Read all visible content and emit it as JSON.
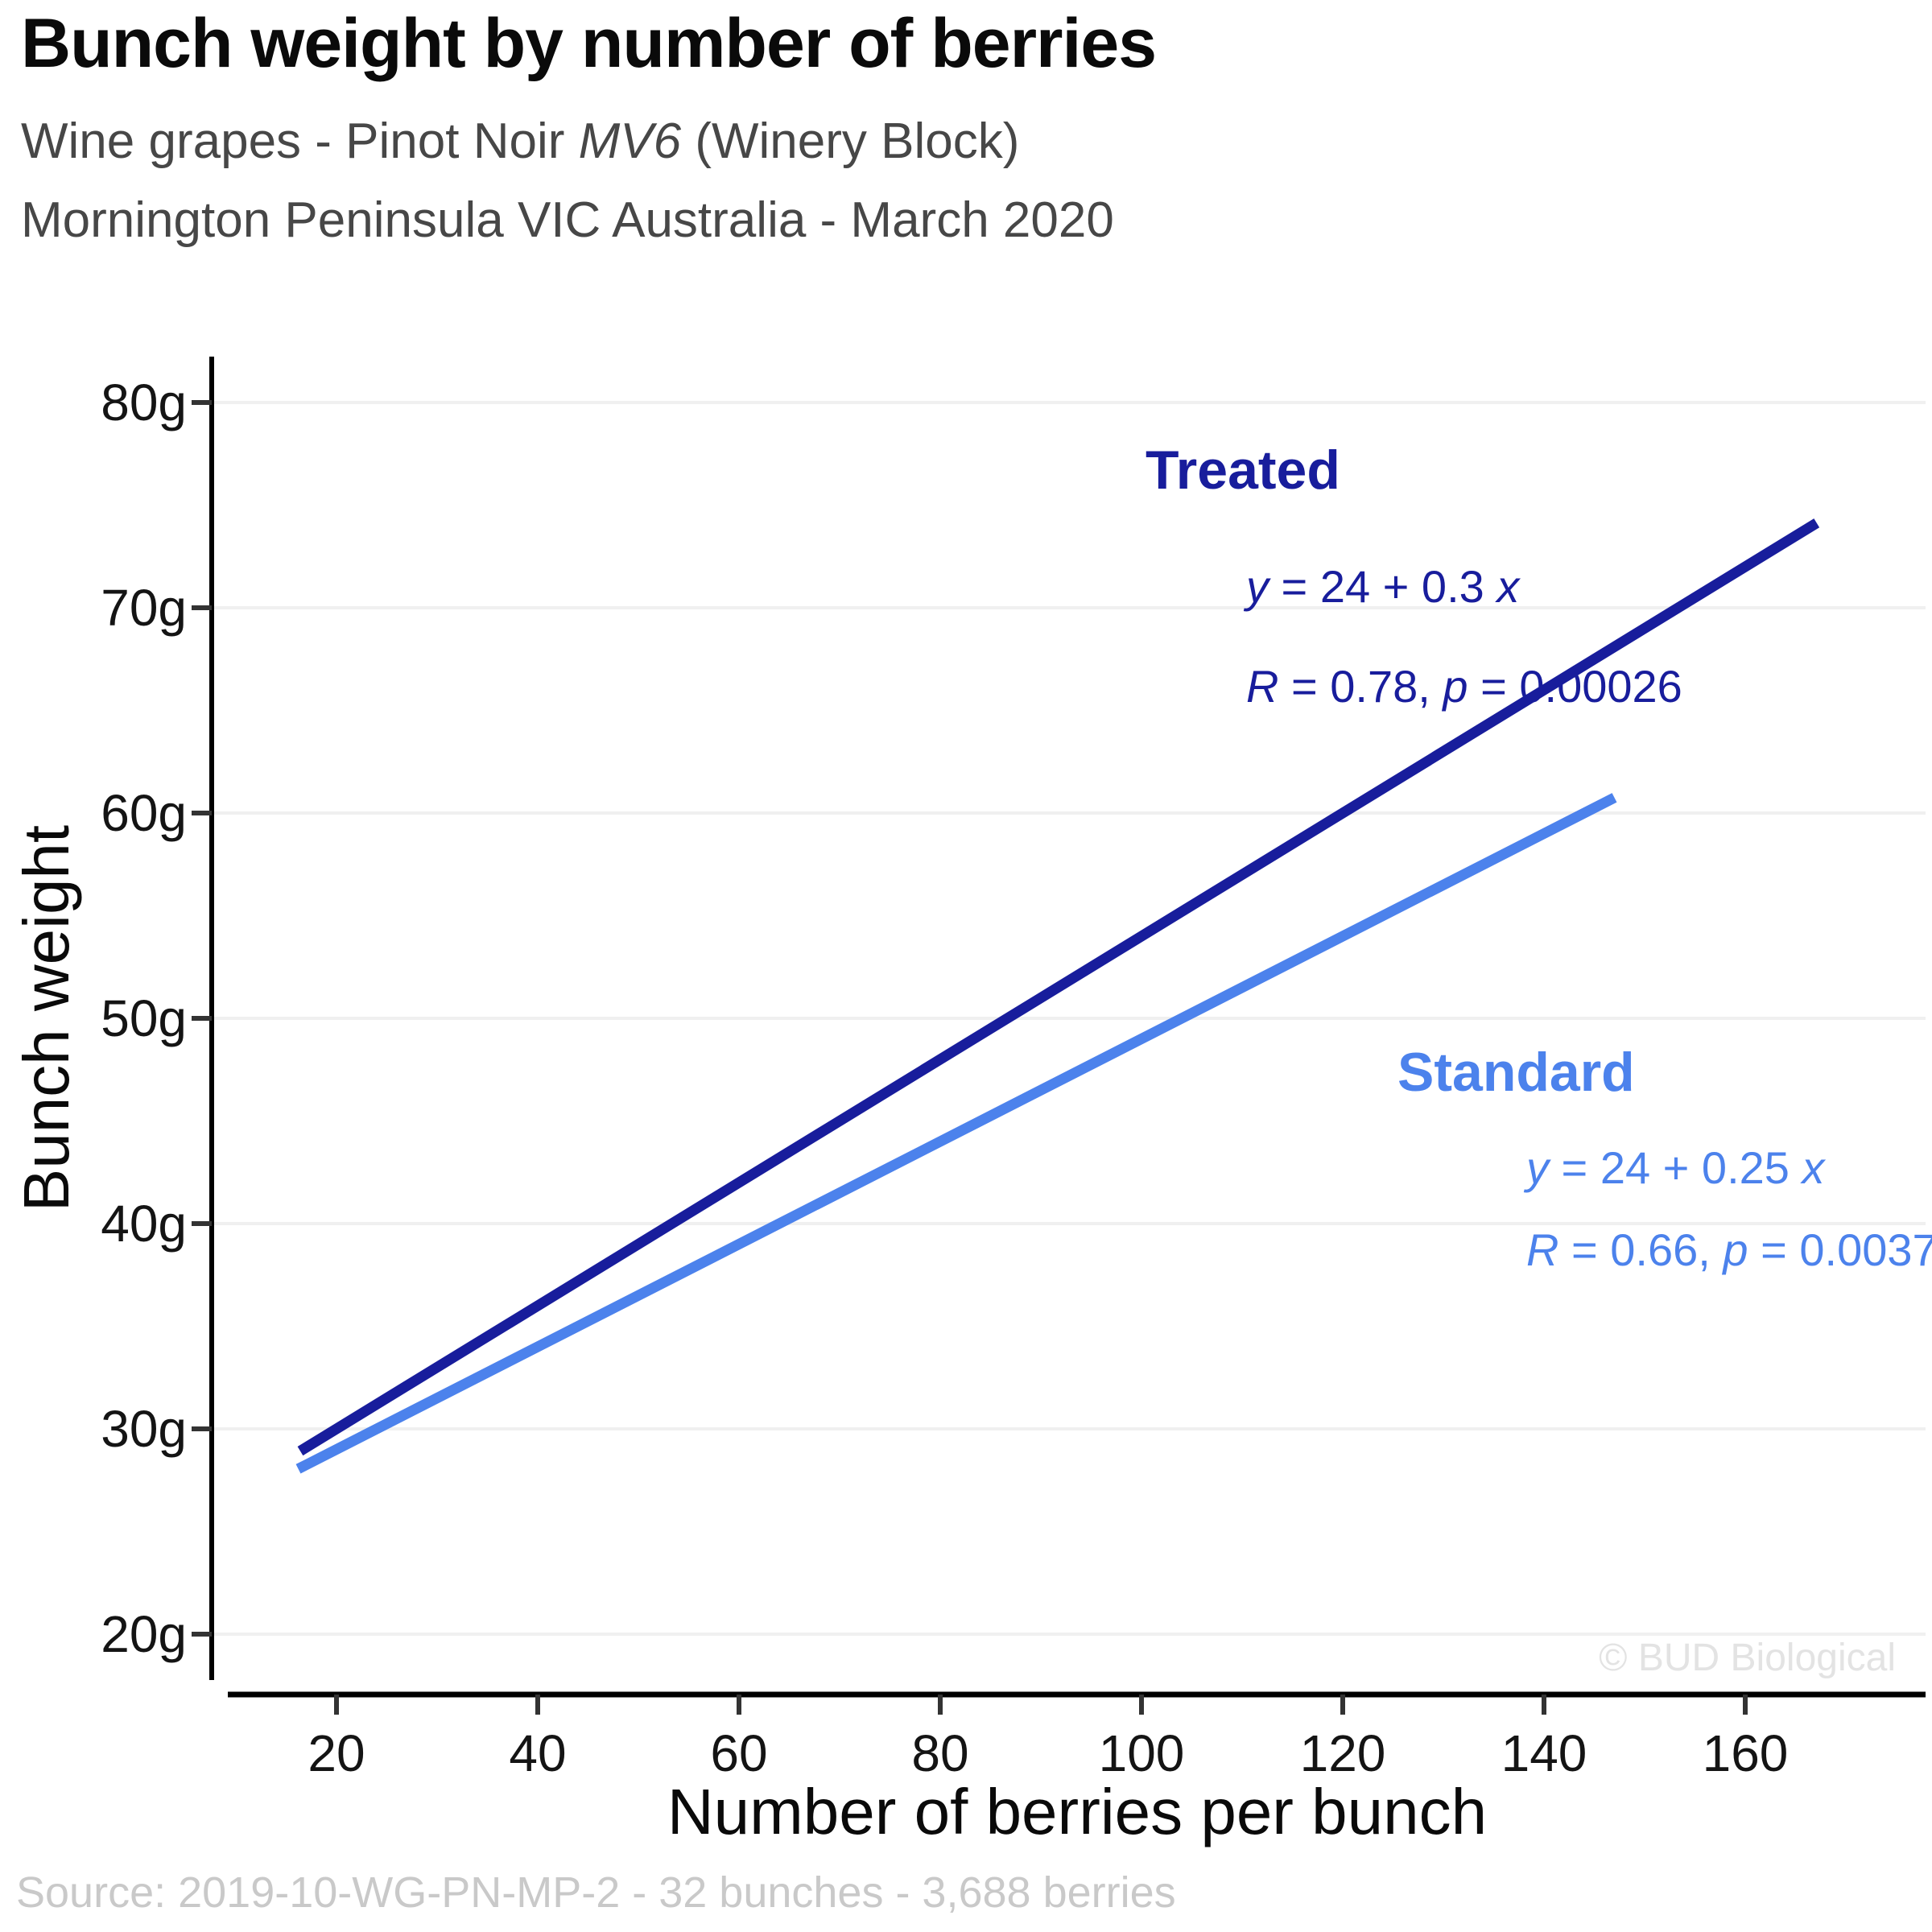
{
  "header": {
    "title": "Bunch weight by number of berries",
    "subtitle_line1": {
      "pre": "Wine grapes - Pinot Noir ",
      "italic": "MV6",
      "post": " (Winery Block)"
    },
    "subtitle_line2": "Mornington Peninsula VIC Australia - March 2020"
  },
  "chart_data": {
    "type": "line",
    "title": "Bunch weight by number of berries",
    "subtitle": [
      "Wine grapes - Pinot Noir MV6 (Winery Block)",
      "Mornington Peninsula VIC Australia - March 2020"
    ],
    "xlabel": "Number of berries per bunch",
    "ylabel": "Bunch weight",
    "xlim": [
      8,
      178
    ],
    "ylim": [
      17.8,
      82.2
    ],
    "grid": "horizontal gridlines only, very light gray",
    "legend": "none - series labelled by colored annotations inside plot",
    "x_axis": {
      "ticks": [
        {
          "value": 20,
          "label": "20"
        },
        {
          "value": 40,
          "label": "40"
        },
        {
          "value": 60,
          "label": "60"
        },
        {
          "value": 80,
          "label": "80"
        },
        {
          "value": 100,
          "label": "100"
        },
        {
          "value": 120,
          "label": "120"
        },
        {
          "value": 140,
          "label": "140"
        },
        {
          "value": 160,
          "label": "160"
        }
      ]
    },
    "y_axis": {
      "ticks": [
        {
          "value": 80,
          "label": "80g"
        },
        {
          "value": 70,
          "label": "70g"
        },
        {
          "value": 60,
          "label": "60g"
        },
        {
          "value": 50,
          "label": "50g"
        },
        {
          "value": 40,
          "label": "40g"
        },
        {
          "value": 30,
          "label": "30g"
        },
        {
          "value": 20,
          "label": "20g"
        }
      ]
    },
    "series": [
      {
        "name": "Treated",
        "color": "#181D9C",
        "slope": 0.3,
        "intercept": 24,
        "x_range": [
          16.4,
          167.1
        ],
        "endpoints": [
          {
            "x": 16.4,
            "y": 28.9
          },
          {
            "x": 167.1,
            "y": 74.1
          }
        ],
        "R": 0.78,
        "p": 0.00026,
        "annotation": {
          "label": "Treated",
          "eq": {
            "y_var": "y",
            "body": " = 24 + 0.3 ",
            "x_var": "x"
          },
          "stats": {
            "R_var": "R",
            "r_body": " = 0.78, ",
            "p_var": "p",
            "p_body": " = 0.00026"
          }
        }
      },
      {
        "name": "Standard",
        "color": "#4C82EC",
        "slope": 0.25,
        "intercept": 24,
        "x_range": [
          16.2,
          147
        ],
        "endpoints": [
          {
            "x": 16.2,
            "y": 28.1
          },
          {
            "x": 147,
            "y": 60.8
          }
        ],
        "R": 0.66,
        "p": 0.0037,
        "annotation": {
          "label": "Standard",
          "eq": {
            "y_var": "y",
            "body": " = 24 + 0.25 ",
            "x_var": "x"
          },
          "stats": {
            "R_var": "R",
            "r_body": " = 0.66, ",
            "p_var": "p",
            "p_body": " = 0.0037"
          }
        }
      }
    ]
  },
  "footer": {
    "source": "Source: 2019-10-WG-PN-MP-2 - 32 bunches - 3,688 berries",
    "watermark": "© BUD Biological"
  }
}
